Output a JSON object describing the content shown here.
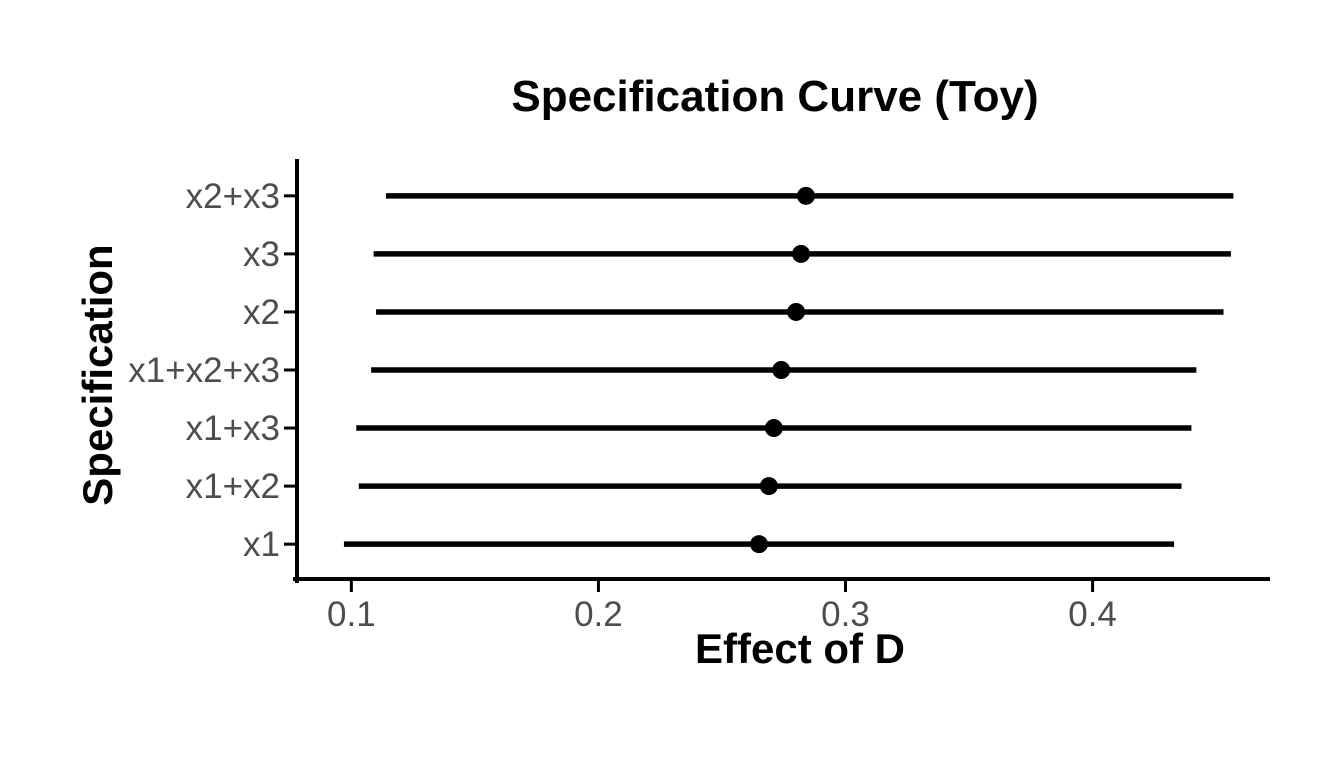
{
  "chart_data": {
    "type": "scatter",
    "subtype": "pointrange-horizontal",
    "title": "Specification Curve (Toy)",
    "xlabel": "Effect of D",
    "ylabel": "Specification",
    "rows": [
      {
        "label": "x2+x3",
        "estimate": 0.284,
        "ci_low": 0.114,
        "ci_high": 0.457
      },
      {
        "label": "x3",
        "estimate": 0.282,
        "ci_low": 0.109,
        "ci_high": 0.456
      },
      {
        "label": "x2",
        "estimate": 0.28,
        "ci_low": 0.11,
        "ci_high": 0.453
      },
      {
        "label": "x1+x2+x3",
        "estimate": 0.274,
        "ci_low": 0.108,
        "ci_high": 0.442
      },
      {
        "label": "x1+x3",
        "estimate": 0.271,
        "ci_low": 0.102,
        "ci_high": 0.44
      },
      {
        "label": "x1+x2",
        "estimate": 0.269,
        "ci_low": 0.103,
        "ci_high": 0.436
      },
      {
        "label": "x1",
        "estimate": 0.265,
        "ci_low": 0.097,
        "ci_high": 0.433
      }
    ],
    "xticks": [
      0.1,
      0.2,
      0.3,
      0.4
    ],
    "xtick_labels": [
      "0.1",
      "0.2",
      "0.3",
      "0.4"
    ],
    "xlim": [
      0.078,
      0.471
    ],
    "grid": false,
    "legend": "none",
    "colors": {
      "point": "#000000",
      "interval_line": "#000000",
      "axis_line": "#000000",
      "tick_label": "#4d4d4d",
      "title": "#000000",
      "background": "#ffffff"
    }
  }
}
